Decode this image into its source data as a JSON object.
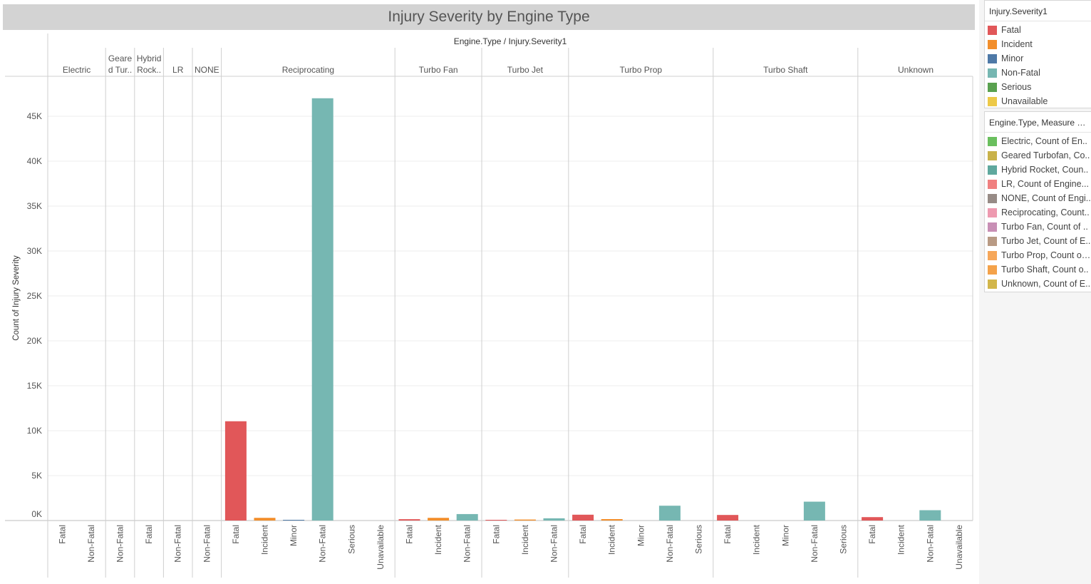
{
  "title": "Injury Severity by Engine Type",
  "header_label": "Engine.Type / Injury.Severity1",
  "chart_data": {
    "type": "bar",
    "title": "Injury Severity by Engine Type",
    "ylabel": "Count of Injury Severity",
    "xlabel": "",
    "ylim": [
      0,
      48500
    ],
    "yticks": [
      0,
      5000,
      10000,
      15000,
      20000,
      25000,
      30000,
      35000,
      40000,
      45000
    ],
    "ytick_labels": [
      "0K",
      "5K",
      "10K",
      "15K",
      "20K",
      "25K",
      "30K",
      "35K",
      "40K",
      "45K"
    ],
    "groups": [
      {
        "name": "Electric",
        "categories": [
          "Fatal",
          "Non-Fatal"
        ],
        "values": [
          1,
          8
        ]
      },
      {
        "name": "Geare d Tur..",
        "categories": [
          "Non-Fatal"
        ],
        "values": [
          12
        ]
      },
      {
        "name": "Hybrid Rock..",
        "categories": [
          "Fatal"
        ],
        "values": [
          1
        ]
      },
      {
        "name": "LR",
        "categories": [
          "Non-Fatal"
        ],
        "values": [
          2
        ]
      },
      {
        "name": "NONE",
        "categories": [
          "Non-Fatal"
        ],
        "values": [
          2
        ]
      },
      {
        "name": "Reciprocating",
        "categories": [
          "Fatal",
          "Incident",
          "Minor",
          "Non-Fatal",
          "Serious",
          "Unavailable"
        ],
        "values": [
          11050,
          300,
          80,
          47000,
          10,
          10
        ]
      },
      {
        "name": "Turbo Fan",
        "categories": [
          "Fatal",
          "Incident",
          "Non-Fatal"
        ],
        "values": [
          150,
          300,
          720
        ]
      },
      {
        "name": "Turbo Jet",
        "categories": [
          "Fatal",
          "Incident",
          "Non-Fatal"
        ],
        "values": [
          80,
          110,
          250
        ]
      },
      {
        "name": "Turbo Prop",
        "categories": [
          "Fatal",
          "Incident",
          "Minor",
          "Non-Fatal",
          "Serious"
        ],
        "values": [
          650,
          160,
          5,
          1650,
          5
        ]
      },
      {
        "name": "Turbo Shaft",
        "categories": [
          "Fatal",
          "Incident",
          "Minor",
          "Non-Fatal",
          "Serious"
        ],
        "values": [
          620,
          5,
          5,
          2100,
          5
        ]
      },
      {
        "name": "Unknown",
        "categories": [
          "Fatal",
          "Incident",
          "Non-Fatal",
          "Unavailable"
        ],
        "values": [
          380,
          10,
          1150,
          5
        ]
      }
    ]
  },
  "colors": {
    "Fatal": "#e15759",
    "Incident": "#f28e2b",
    "Minor": "#4e79a7",
    "Non-Fatal": "#76b7b2",
    "Serious": "#59a14f",
    "Unavailable": "#edc948"
  },
  "legend1": {
    "title": "Injury.Severity1",
    "items": [
      {
        "label": "Fatal",
        "color": "#e15759"
      },
      {
        "label": "Incident",
        "color": "#f28e2b"
      },
      {
        "label": "Minor",
        "color": "#4e79a7"
      },
      {
        "label": "Non-Fatal",
        "color": "#76b7b2"
      },
      {
        "label": "Serious",
        "color": "#59a14f"
      },
      {
        "label": "Unavailable",
        "color": "#edc948"
      }
    ]
  },
  "legend2": {
    "title": "Engine.Type, Measure N...",
    "items": [
      {
        "label": "Electric, Count of En..",
        "color": "#6abf5e"
      },
      {
        "label": "Geared Turbofan, Co..",
        "color": "#c9b24a"
      },
      {
        "label": "Hybrid Rocket, Coun..",
        "color": "#5fa89e"
      },
      {
        "label": "LR, Count of Engine...",
        "color": "#f08080"
      },
      {
        "label": "NONE, Count of Engi..",
        "color": "#978b86"
      },
      {
        "label": "Reciprocating, Count..",
        "color": "#ee9ab0"
      },
      {
        "label": "Turbo Fan, Count of ..",
        "color": "#c88fb5"
      },
      {
        "label": "Turbo Jet, Count of E..",
        "color": "#b89a84"
      },
      {
        "label": "Turbo Prop, Count of ..",
        "color": "#f6a75a"
      },
      {
        "label": "Turbo Shaft, Count o..",
        "color": "#f4a24a"
      },
      {
        "label": "Unknown, Count of E..",
        "color": "#d2b64a"
      }
    ]
  }
}
